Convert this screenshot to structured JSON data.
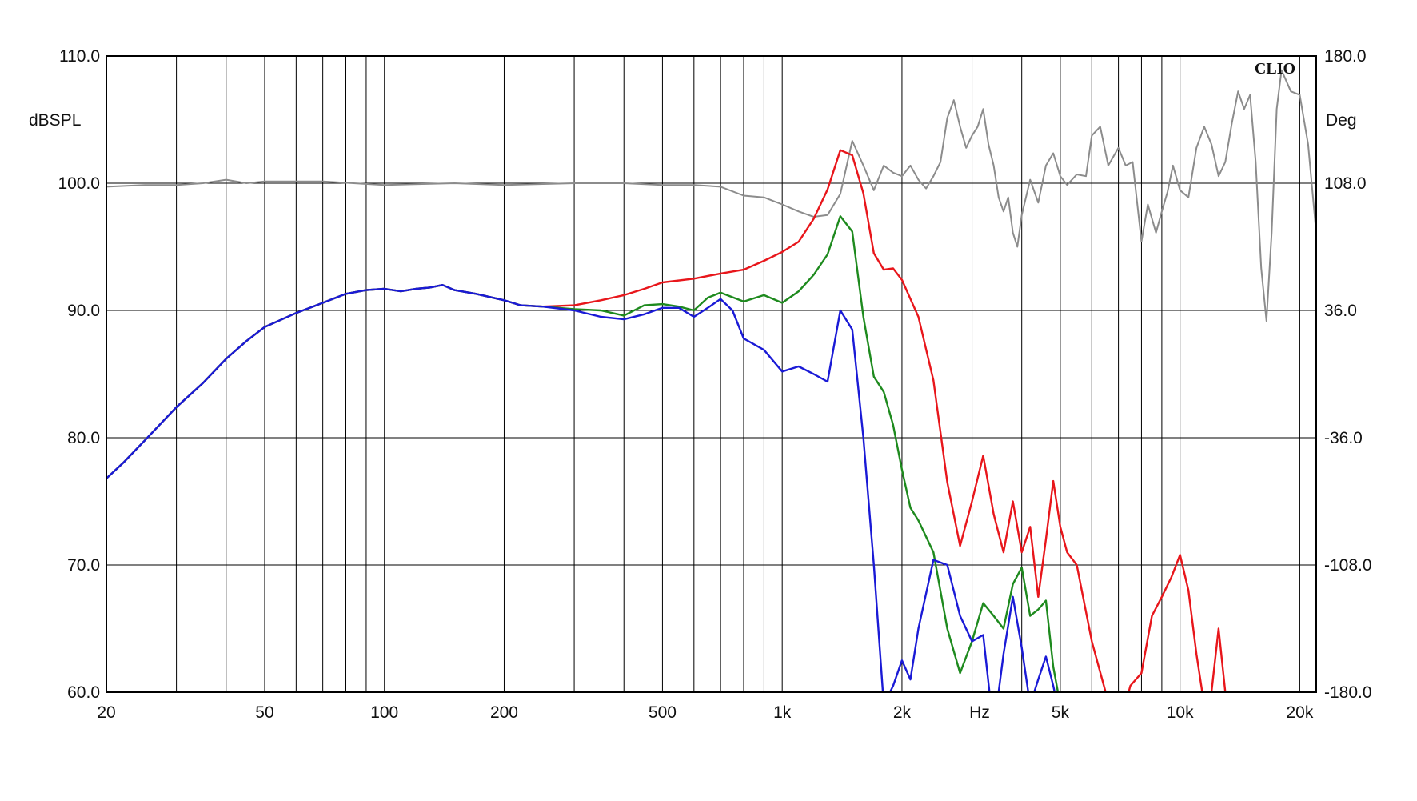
{
  "chart_data": {
    "type": "line",
    "brand": "CLIO",
    "xlabel": "Hz",
    "ylabel": "dBSPL",
    "y2label": "Deg",
    "xscale": "log",
    "xlim": [
      20,
      22000
    ],
    "ylim": [
      60,
      110
    ],
    "y2lim": [
      -180,
      180
    ],
    "grid": true,
    "x_tick_labels": [
      {
        "value": 20,
        "label": "20"
      },
      {
        "value": 50,
        "label": "50"
      },
      {
        "value": 100,
        "label": "100"
      },
      {
        "value": 200,
        "label": "200"
      },
      {
        "value": 500,
        "label": "500"
      },
      {
        "value": 1000,
        "label": "1k"
      },
      {
        "value": 2000,
        "label": "2k"
      },
      {
        "value": 5000,
        "label": "5k"
      },
      {
        "value": 10000,
        "label": "10k"
      },
      {
        "value": 20000,
        "label": "20k"
      }
    ],
    "x_gridlines": [
      20,
      30,
      40,
      50,
      60,
      70,
      80,
      90,
      100,
      200,
      300,
      400,
      500,
      600,
      700,
      800,
      900,
      1000,
      2000,
      3000,
      4000,
      5000,
      6000,
      7000,
      8000,
      9000,
      10000,
      20000
    ],
    "y_ticks": [
      {
        "value": 60,
        "label": "60.0"
      },
      {
        "value": 70,
        "label": "70.0"
      },
      {
        "value": 80,
        "label": "80.0"
      },
      {
        "value": 90,
        "label": "90.0"
      },
      {
        "value": 100,
        "label": "100.0"
      },
      {
        "value": 110,
        "label": "110.0"
      }
    ],
    "y2_ticks": [
      {
        "value": -180,
        "label": "-180.0"
      },
      {
        "value": -108,
        "label": "-108.0"
      },
      {
        "value": -36,
        "label": "-36.0"
      },
      {
        "value": 36,
        "label": "36.0"
      },
      {
        "value": 108,
        "label": "108.0"
      },
      {
        "value": 180,
        "label": "180.0"
      }
    ],
    "colors": {
      "red": "#e8161b",
      "green": "#1e8a1e",
      "blue": "#1a1ad6",
      "gray": "#8c8c8c",
      "grid": "#000000"
    },
    "series": [
      {
        "color": "gray",
        "axis": "right",
        "points": [
          [
            20,
            106
          ],
          [
            25,
            107
          ],
          [
            30,
            107
          ],
          [
            35,
            108
          ],
          [
            40,
            110
          ],
          [
            45,
            108
          ],
          [
            50,
            109
          ],
          [
            70,
            109
          ],
          [
            100,
            107
          ],
          [
            150,
            108
          ],
          [
            200,
            107
          ],
          [
            300,
            108
          ],
          [
            400,
            108
          ],
          [
            500,
            107
          ],
          [
            600,
            107
          ],
          [
            700,
            106
          ],
          [
            800,
            101
          ],
          [
            900,
            100
          ],
          [
            1000,
            96
          ],
          [
            1100,
            92
          ],
          [
            1200,
            89
          ],
          [
            1300,
            90
          ],
          [
            1400,
            102
          ],
          [
            1500,
            132
          ],
          [
            1600,
            118
          ],
          [
            1700,
            104
          ],
          [
            1800,
            118
          ],
          [
            1900,
            114
          ],
          [
            2000,
            112
          ],
          [
            2100,
            118
          ],
          [
            2200,
            110
          ],
          [
            2300,
            105
          ],
          [
            2400,
            112
          ],
          [
            2500,
            120
          ],
          [
            2600,
            145
          ],
          [
            2700,
            155
          ],
          [
            2800,
            140
          ],
          [
            2900,
            128
          ],
          [
            3000,
            135
          ],
          [
            3100,
            140
          ],
          [
            3200,
            150
          ],
          [
            3300,
            130
          ],
          [
            3400,
            118
          ],
          [
            3500,
            100
          ],
          [
            3600,
            92
          ],
          [
            3700,
            100
          ],
          [
            3800,
            80
          ],
          [
            3900,
            72
          ],
          [
            4000,
            90
          ],
          [
            4200,
            110
          ],
          [
            4400,
            97
          ],
          [
            4600,
            118
          ],
          [
            4800,
            125
          ],
          [
            5000,
            112
          ],
          [
            5200,
            107
          ],
          [
            5500,
            113
          ],
          [
            5800,
            112
          ],
          [
            6000,
            135
          ],
          [
            6300,
            140
          ],
          [
            6600,
            118
          ],
          [
            7000,
            128
          ],
          [
            7300,
            118
          ],
          [
            7600,
            120
          ],
          [
            8000,
            75
          ],
          [
            8300,
            96
          ],
          [
            8700,
            80
          ],
          [
            9000,
            92
          ],
          [
            9300,
            103
          ],
          [
            9600,
            118
          ],
          [
            10000,
            104
          ],
          [
            10500,
            100
          ],
          [
            11000,
            128
          ],
          [
            11500,
            140
          ],
          [
            12000,
            130
          ],
          [
            12500,
            112
          ],
          [
            13000,
            120
          ],
          [
            13500,
            142
          ],
          [
            14000,
            160
          ],
          [
            14500,
            150
          ],
          [
            15000,
            158
          ],
          [
            15500,
            120
          ],
          [
            16000,
            60
          ],
          [
            16500,
            30
          ],
          [
            17000,
            80
          ],
          [
            17500,
            150
          ],
          [
            18000,
            172
          ],
          [
            19000,
            160
          ],
          [
            20000,
            158
          ],
          [
            21000,
            130
          ],
          [
            22000,
            80
          ]
        ]
      },
      {
        "color": "red",
        "axis": "left",
        "points": [
          [
            20,
            76.8
          ],
          [
            22,
            78
          ],
          [
            25,
            79.8
          ],
          [
            30,
            82.4
          ],
          [
            35,
            84.3
          ],
          [
            40,
            86.2
          ],
          [
            45,
            87.6
          ],
          [
            50,
            88.7
          ],
          [
            60,
            89.8
          ],
          [
            70,
            90.6
          ],
          [
            80,
            91.3
          ],
          [
            90,
            91.6
          ],
          [
            100,
            91.7
          ],
          [
            110,
            91.5
          ],
          [
            120,
            91.7
          ],
          [
            130,
            91.8
          ],
          [
            140,
            92
          ],
          [
            150,
            91.6
          ],
          [
            170,
            91.3
          ],
          [
            200,
            90.8
          ],
          [
            220,
            90.4
          ],
          [
            250,
            90.3
          ],
          [
            300,
            90.4
          ],
          [
            350,
            90.8
          ],
          [
            400,
            91.2
          ],
          [
            450,
            91.7
          ],
          [
            500,
            92.2
          ],
          [
            600,
            92.5
          ],
          [
            700,
            92.9
          ],
          [
            800,
            93.2
          ],
          [
            900,
            93.9
          ],
          [
            1000,
            94.6
          ],
          [
            1100,
            95.4
          ],
          [
            1200,
            97.2
          ],
          [
            1300,
            99.5
          ],
          [
            1400,
            102.6
          ],
          [
            1500,
            102.2
          ],
          [
            1600,
            99.2
          ],
          [
            1700,
            94.5
          ],
          [
            1800,
            93.2
          ],
          [
            1900,
            93.3
          ],
          [
            2000,
            92.4
          ],
          [
            2200,
            89.5
          ],
          [
            2400,
            84.5
          ],
          [
            2600,
            76.5
          ],
          [
            2800,
            71.5
          ],
          [
            3000,
            75
          ],
          [
            3200,
            78.6
          ],
          [
            3400,
            74
          ],
          [
            3600,
            71
          ],
          [
            3800,
            75
          ],
          [
            4000,
            71
          ],
          [
            4200,
            73
          ],
          [
            4400,
            67.5
          ],
          [
            4600,
            72
          ],
          [
            4800,
            76.6
          ],
          [
            5000,
            73
          ],
          [
            5200,
            71
          ],
          [
            5500,
            70
          ],
          [
            6000,
            64
          ],
          [
            6500,
            60
          ],
          [
            7000,
            57
          ],
          [
            7500,
            60.5
          ],
          [
            8000,
            61.5
          ],
          [
            8500,
            66
          ],
          [
            9000,
            67.5
          ],
          [
            9500,
            69
          ],
          [
            10000,
            70.8
          ],
          [
            10500,
            68
          ],
          [
            11000,
            63
          ],
          [
            11500,
            59
          ],
          [
            12000,
            60
          ],
          [
            12500,
            65
          ],
          [
            13000,
            60
          ],
          [
            14000,
            57
          ]
        ]
      },
      {
        "color": "green",
        "axis": "left",
        "points": [
          [
            20,
            76.8
          ],
          [
            22,
            78
          ],
          [
            25,
            79.8
          ],
          [
            30,
            82.4
          ],
          [
            35,
            84.3
          ],
          [
            40,
            86.2
          ],
          [
            45,
            87.6
          ],
          [
            50,
            88.7
          ],
          [
            60,
            89.8
          ],
          [
            70,
            90.6
          ],
          [
            80,
            91.3
          ],
          [
            90,
            91.6
          ],
          [
            100,
            91.7
          ],
          [
            110,
            91.5
          ],
          [
            120,
            91.7
          ],
          [
            130,
            91.8
          ],
          [
            140,
            92
          ],
          [
            150,
            91.6
          ],
          [
            170,
            91.3
          ],
          [
            200,
            90.8
          ],
          [
            220,
            90.4
          ],
          [
            250,
            90.3
          ],
          [
            300,
            90.1
          ],
          [
            350,
            90
          ],
          [
            400,
            89.6
          ],
          [
            450,
            90.4
          ],
          [
            500,
            90.5
          ],
          [
            550,
            90.3
          ],
          [
            600,
            90
          ],
          [
            650,
            91
          ],
          [
            700,
            91.4
          ],
          [
            800,
            90.7
          ],
          [
            900,
            91.2
          ],
          [
            1000,
            90.6
          ],
          [
            1100,
            91.5
          ],
          [
            1200,
            92.8
          ],
          [
            1300,
            94.4
          ],
          [
            1400,
            97.4
          ],
          [
            1500,
            96.2
          ],
          [
            1600,
            89.5
          ],
          [
            1700,
            84.8
          ],
          [
            1800,
            83.6
          ],
          [
            1900,
            81
          ],
          [
            2000,
            77.5
          ],
          [
            2100,
            74.5
          ],
          [
            2200,
            73.5
          ],
          [
            2400,
            71
          ],
          [
            2600,
            65
          ],
          [
            2800,
            61.5
          ],
          [
            3000,
            64
          ],
          [
            3200,
            67
          ],
          [
            3400,
            66
          ],
          [
            3600,
            65
          ],
          [
            3800,
            68.5
          ],
          [
            4000,
            69.8
          ],
          [
            4200,
            66
          ],
          [
            4400,
            66.5
          ],
          [
            4600,
            67.2
          ],
          [
            4800,
            62
          ],
          [
            5000,
            59
          ]
        ]
      },
      {
        "color": "blue",
        "axis": "left",
        "points": [
          [
            20,
            76.8
          ],
          [
            22,
            78
          ],
          [
            25,
            79.8
          ],
          [
            30,
            82.4
          ],
          [
            35,
            84.3
          ],
          [
            40,
            86.2
          ],
          [
            45,
            87.6
          ],
          [
            50,
            88.7
          ],
          [
            60,
            89.8
          ],
          [
            70,
            90.6
          ],
          [
            80,
            91.3
          ],
          [
            90,
            91.6
          ],
          [
            100,
            91.7
          ],
          [
            110,
            91.5
          ],
          [
            120,
            91.7
          ],
          [
            130,
            91.8
          ],
          [
            140,
            92
          ],
          [
            150,
            91.6
          ],
          [
            170,
            91.3
          ],
          [
            200,
            90.8
          ],
          [
            220,
            90.4
          ],
          [
            250,
            90.3
          ],
          [
            300,
            90
          ],
          [
            350,
            89.5
          ],
          [
            400,
            89.3
          ],
          [
            450,
            89.7
          ],
          [
            500,
            90.2
          ],
          [
            550,
            90.2
          ],
          [
            600,
            89.5
          ],
          [
            650,
            90.2
          ],
          [
            700,
            90.9
          ],
          [
            750,
            90
          ],
          [
            800,
            87.8
          ],
          [
            900,
            86.9
          ],
          [
            1000,
            85.2
          ],
          [
            1100,
            85.6
          ],
          [
            1200,
            85
          ],
          [
            1300,
            84.4
          ],
          [
            1400,
            90
          ],
          [
            1500,
            88.5
          ],
          [
            1600,
            80
          ],
          [
            1700,
            70
          ],
          [
            1800,
            59
          ],
          [
            1900,
            60.5
          ],
          [
            2000,
            62.5
          ],
          [
            2100,
            61
          ],
          [
            2200,
            65
          ],
          [
            2400,
            70.4
          ],
          [
            2600,
            70
          ],
          [
            2800,
            66
          ],
          [
            3000,
            64
          ],
          [
            3200,
            64.5
          ],
          [
            3400,
            57
          ],
          [
            3600,
            63
          ],
          [
            3800,
            67.5
          ],
          [
            4000,
            63.5
          ],
          [
            4200,
            59
          ],
          [
            4400,
            61
          ],
          [
            4600,
            62.8
          ],
          [
            4800,
            60.5
          ],
          [
            5000,
            58
          ]
        ]
      }
    ]
  }
}
